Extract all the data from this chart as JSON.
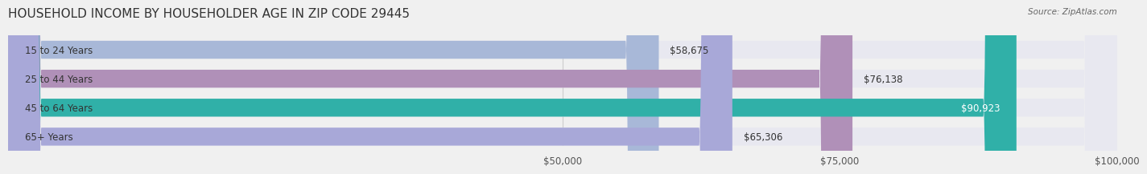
{
  "title": "HOUSEHOLD INCOME BY HOUSEHOLDER AGE IN ZIP CODE 29445",
  "source": "Source: ZipAtlas.com",
  "categories": [
    "15 to 24 Years",
    "25 to 44 Years",
    "45 to 64 Years",
    "65+ Years"
  ],
  "values": [
    58675,
    76138,
    90923,
    65306
  ],
  "bar_colors": [
    "#a8b8d8",
    "#b090b8",
    "#30b0a8",
    "#a8a8d8"
  ],
  "value_labels": [
    "$58,675",
    "$76,138",
    "$90,923",
    "$65,306"
  ],
  "xmin": 0,
  "xmax": 100000,
  "xticks": [
    50000,
    75000,
    100000
  ],
  "xtick_labels": [
    "$50,000",
    "$75,000",
    "$100,000"
  ],
  "background_color": "#f0f0f0",
  "bar_background_color": "#e8e8f0",
  "title_fontsize": 11,
  "label_fontsize": 8.5,
  "value_fontsize": 8.5,
  "bar_height": 0.62
}
